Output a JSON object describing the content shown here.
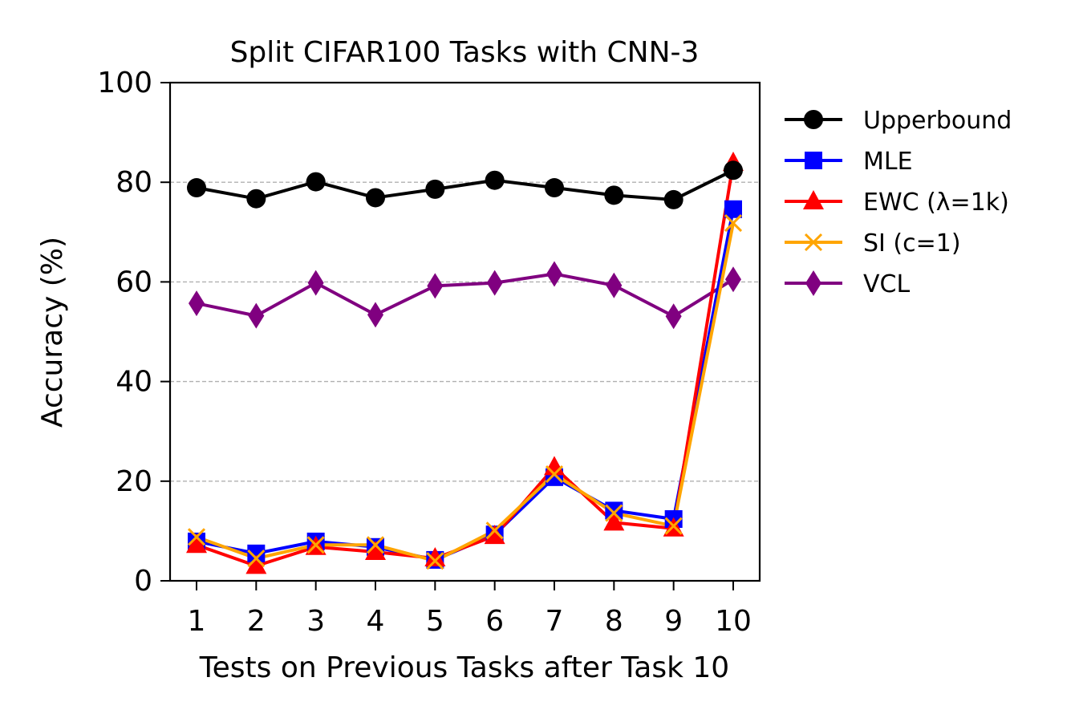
{
  "chart_data": {
    "type": "line",
    "title": "Split CIFAR100 Tasks with CNN-3",
    "xlabel": "Tests on Previous Tasks after Task 10",
    "ylabel": "Accuracy (%)",
    "x": [
      1,
      2,
      3,
      4,
      5,
      6,
      7,
      8,
      9,
      10
    ],
    "x_tick_labels": [
      "1",
      "2",
      "3",
      "4",
      "5",
      "6",
      "7",
      "8",
      "9",
      "10"
    ],
    "ylim": [
      0,
      100
    ],
    "y_ticks": [
      0,
      20,
      40,
      60,
      80,
      100
    ],
    "y_tick_labels": [
      "0",
      "20",
      "40",
      "60",
      "80",
      "100"
    ],
    "grid": "horizontal dashed",
    "legend_position": "outside-right",
    "series": [
      {
        "name": "Upperbound",
        "color": "#000000",
        "marker": "circle",
        "values": [
          78.9,
          76.7,
          80.1,
          76.9,
          78.6,
          80.4,
          78.9,
          77.4,
          76.5,
          82.4
        ]
      },
      {
        "name": "MLE",
        "color": "#0000ff",
        "marker": "square",
        "values": [
          7.9,
          5.5,
          7.9,
          6.8,
          4.2,
          9.3,
          20.8,
          14.1,
          12.4,
          74.6
        ]
      },
      {
        "name": "EWC (λ=1k)",
        "color": "#ff0000",
        "marker": "triangle",
        "values": [
          7.2,
          3.0,
          6.8,
          5.8,
          4.5,
          9.0,
          22.8,
          11.7,
          10.5,
          83.9
        ]
      },
      {
        "name": "SI (c=1)",
        "color": "#ffa500",
        "marker": "x",
        "values": [
          8.8,
          4.5,
          7.2,
          7.2,
          4.0,
          10.1,
          21.4,
          13.6,
          11.0,
          71.8
        ]
      },
      {
        "name": "VCL",
        "color": "#800080",
        "marker": "diamond",
        "values": [
          55.7,
          53.2,
          59.8,
          53.4,
          59.2,
          59.8,
          61.6,
          59.3,
          53.1,
          60.5
        ]
      }
    ]
  }
}
